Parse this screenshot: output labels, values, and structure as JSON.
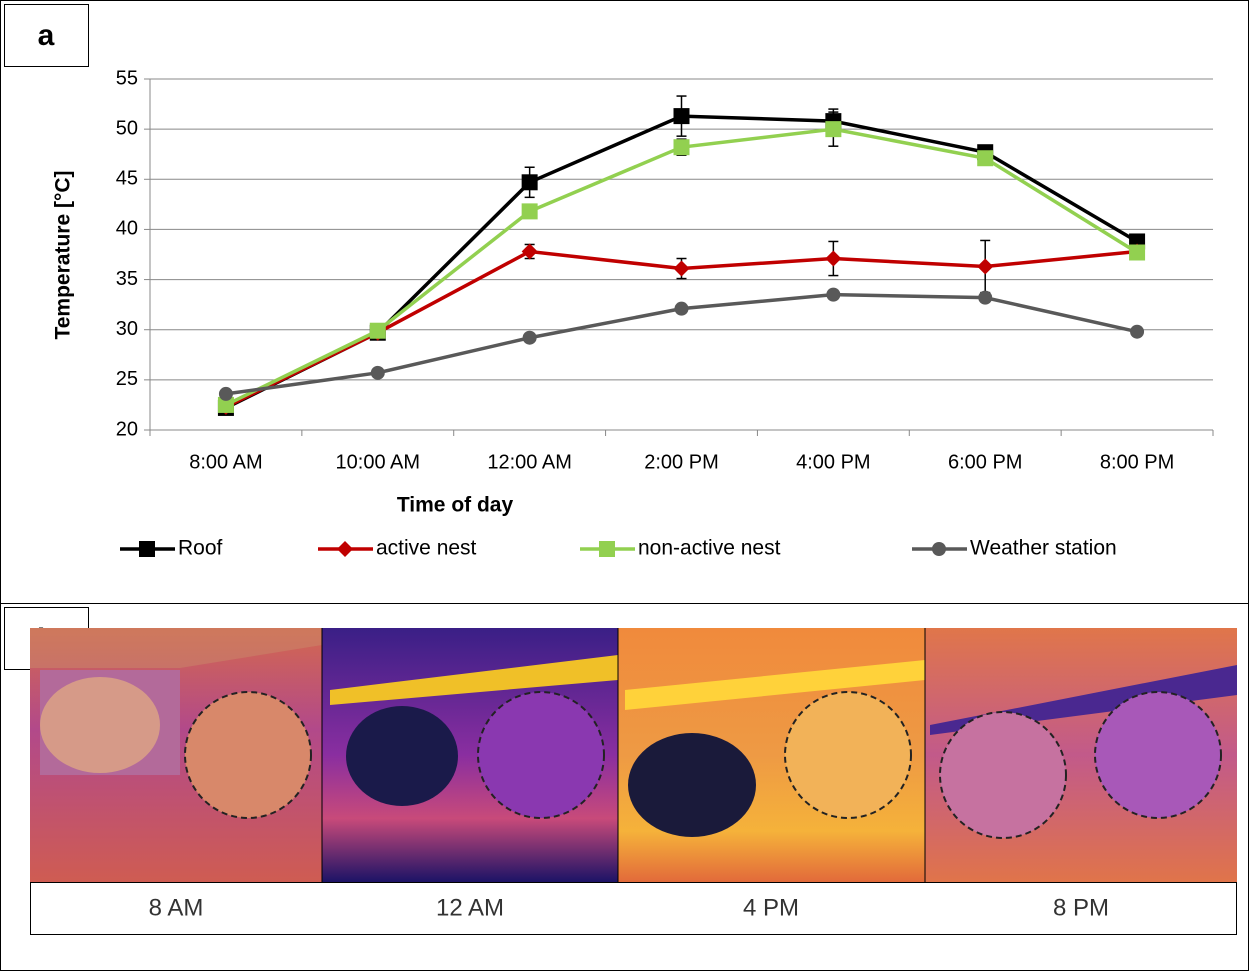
{
  "panels": [
    "a",
    "b"
  ],
  "chart_data": {
    "type": "line",
    "xlabel": "Time of day",
    "ylabel": "Temperature [°C]",
    "categories": [
      "8:00 AM",
      "10:00 AM",
      "12:00 AM",
      "2:00 PM",
      "4:00 PM",
      "6:00 PM",
      "8:00 PM"
    ],
    "ylim": [
      20,
      55
    ],
    "yticks": [
      20,
      25,
      30,
      35,
      40,
      45,
      50,
      55
    ],
    "grid": true,
    "legend": "bottom",
    "series": [
      {
        "name": "Roof",
        "color": "#000000",
        "marker": "square",
        "values": [
          22.2,
          29.7,
          44.7,
          51.3,
          50.8,
          47.7,
          38.8
        ],
        "errors": [
          0.4,
          0.4,
          1.5,
          2.0,
          1.2,
          0.5,
          0.5
        ]
      },
      {
        "name": "active nest",
        "color": "#c00000",
        "marker": "diamond",
        "values": [
          22.3,
          29.7,
          37.8,
          36.1,
          37.1,
          36.3,
          37.8
        ],
        "errors": [
          0.4,
          0.4,
          0.7,
          1.0,
          1.7,
          2.6,
          0.4
        ]
      },
      {
        "name": "non-active nest",
        "color": "#92d050",
        "marker": "square",
        "values": [
          22.5,
          29.9,
          41.8,
          48.2,
          50.0,
          47.1,
          37.7
        ],
        "errors": [
          0.4,
          0.4,
          0.6,
          0.8,
          1.7,
          0.6,
          0.4
        ]
      },
      {
        "name": "Weather station",
        "color": "#595959",
        "marker": "circle",
        "values": [
          23.6,
          25.7,
          29.2,
          32.1,
          33.5,
          33.2,
          29.8
        ]
      }
    ]
  },
  "thermal_images": {
    "labels": [
      "8 AM",
      "12 AM",
      "4 PM",
      "8 PM"
    ]
  }
}
